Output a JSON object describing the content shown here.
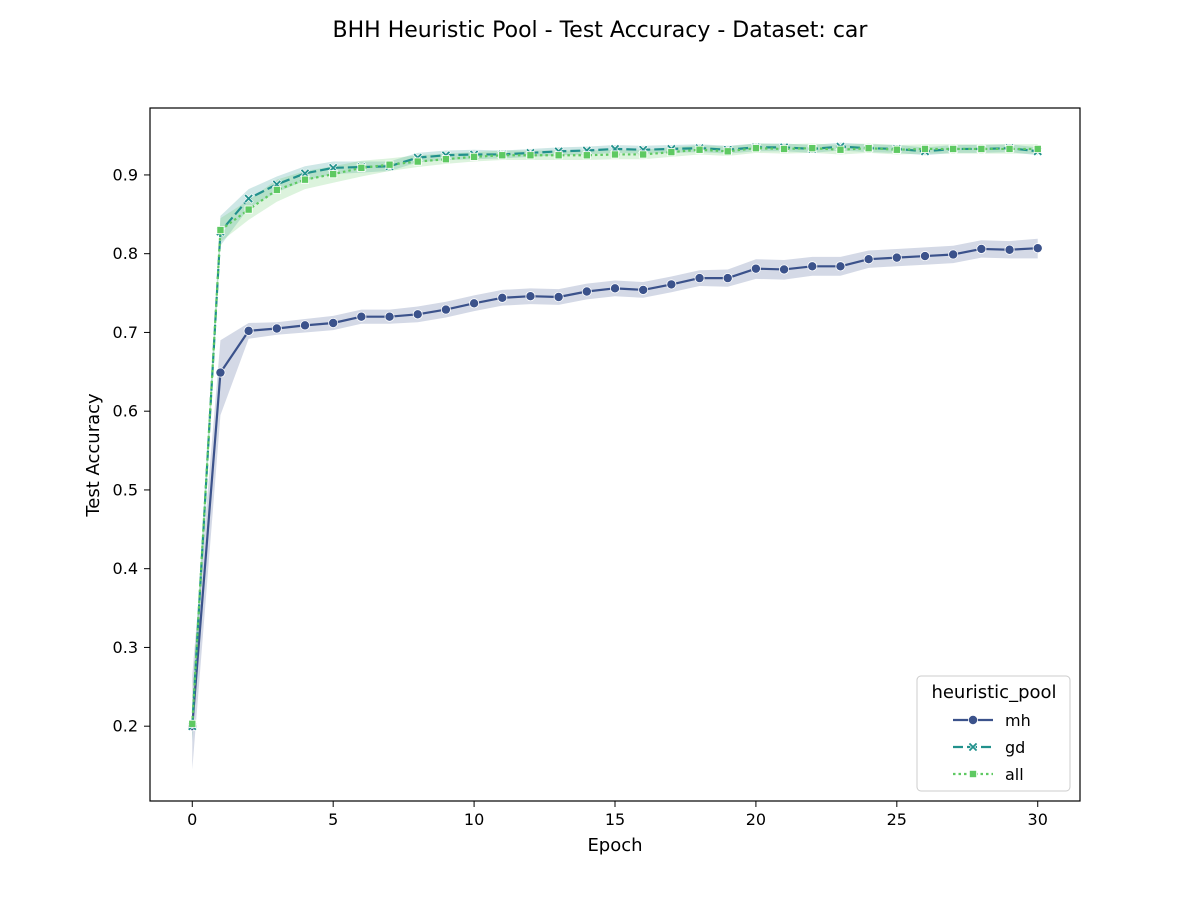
{
  "chart_data": {
    "type": "line",
    "title": "BHH Heuristic Pool - Test Accuracy - Dataset: car",
    "xlabel": "Epoch",
    "ylabel": "Test Accuracy",
    "xlim": [
      -1.5,
      31.5
    ],
    "ylim": [
      0.105,
      0.985
    ],
    "xticks": [
      0,
      5,
      10,
      15,
      20,
      25,
      30
    ],
    "xtick_labels": [
      "0",
      "5",
      "10",
      "15",
      "20",
      "25",
      "30"
    ],
    "yticks": [
      0.2,
      0.3,
      0.4,
      0.5,
      0.6,
      0.7,
      0.8,
      0.9
    ],
    "ytick_labels": [
      "0.2",
      "0.3",
      "0.4",
      "0.5",
      "0.6",
      "0.7",
      "0.8",
      "0.9"
    ],
    "grid": false,
    "legend": {
      "title": "heuristic_pool",
      "placement": "lower-right"
    },
    "x": [
      0,
      1,
      2,
      3,
      4,
      5,
      6,
      7,
      8,
      9,
      10,
      11,
      12,
      13,
      14,
      15,
      16,
      17,
      18,
      19,
      20,
      21,
      22,
      23,
      24,
      25,
      26,
      27,
      28,
      29,
      30
    ],
    "series": [
      {
        "name": "mh",
        "color": "#3b528b",
        "line_style": "solid",
        "marker": "circle",
        "values": [
          0.2,
          0.649,
          0.702,
          0.705,
          0.709,
          0.712,
          0.72,
          0.72,
          0.723,
          0.729,
          0.737,
          0.744,
          0.746,
          0.745,
          0.752,
          0.756,
          0.754,
          0.761,
          0.769,
          0.769,
          0.781,
          0.78,
          0.784,
          0.784,
          0.793,
          0.795,
          0.797,
          0.799,
          0.806,
          0.805,
          0.807
        ],
        "band_lower": [
          0.145,
          0.595,
          0.692,
          0.697,
          0.7,
          0.703,
          0.711,
          0.711,
          0.713,
          0.719,
          0.727,
          0.734,
          0.736,
          0.735,
          0.742,
          0.746,
          0.744,
          0.751,
          0.759,
          0.758,
          0.768,
          0.767,
          0.772,
          0.772,
          0.782,
          0.784,
          0.786,
          0.788,
          0.795,
          0.794,
          0.794
        ],
        "band_upper": [
          0.265,
          0.69,
          0.712,
          0.713,
          0.717,
          0.721,
          0.729,
          0.729,
          0.733,
          0.739,
          0.747,
          0.754,
          0.756,
          0.755,
          0.762,
          0.766,
          0.764,
          0.771,
          0.779,
          0.78,
          0.793,
          0.792,
          0.796,
          0.796,
          0.804,
          0.806,
          0.808,
          0.81,
          0.817,
          0.816,
          0.819
        ]
      },
      {
        "name": "gd",
        "color": "#21918c",
        "line_style": "dashed",
        "marker": "x",
        "values": [
          0.2,
          0.828,
          0.87,
          0.888,
          0.902,
          0.909,
          0.91,
          0.911,
          0.922,
          0.925,
          0.926,
          0.926,
          0.928,
          0.93,
          0.931,
          0.933,
          0.932,
          0.933,
          0.934,
          0.932,
          0.935,
          0.935,
          0.933,
          0.936,
          0.934,
          0.933,
          0.93,
          0.933,
          0.933,
          0.934,
          0.93
        ],
        "band_lower": [
          0.18,
          0.81,
          0.858,
          0.878,
          0.893,
          0.901,
          0.903,
          0.905,
          0.916,
          0.919,
          0.92,
          0.921,
          0.923,
          0.925,
          0.926,
          0.928,
          0.927,
          0.928,
          0.929,
          0.927,
          0.93,
          0.93,
          0.928,
          0.931,
          0.929,
          0.928,
          0.925,
          0.928,
          0.928,
          0.929,
          0.925
        ],
        "band_upper": [
          0.225,
          0.848,
          0.882,
          0.898,
          0.911,
          0.917,
          0.917,
          0.917,
          0.928,
          0.931,
          0.932,
          0.931,
          0.933,
          0.935,
          0.936,
          0.938,
          0.937,
          0.938,
          0.939,
          0.937,
          0.94,
          0.94,
          0.938,
          0.941,
          0.939,
          0.938,
          0.935,
          0.938,
          0.938,
          0.939,
          0.935
        ]
      },
      {
        "name": "all",
        "color": "#5ec962",
        "line_style": "dotted",
        "marker": "square",
        "values": [
          0.203,
          0.83,
          0.856,
          0.881,
          0.894,
          0.901,
          0.909,
          0.913,
          0.917,
          0.92,
          0.923,
          0.925,
          0.925,
          0.925,
          0.925,
          0.926,
          0.926,
          0.929,
          0.932,
          0.93,
          0.934,
          0.933,
          0.934,
          0.932,
          0.934,
          0.932,
          0.933,
          0.933,
          0.933,
          0.933,
          0.933
        ],
        "band_lower": [
          0.185,
          0.815,
          0.843,
          0.866,
          0.882,
          0.89,
          0.898,
          0.905,
          0.91,
          0.914,
          0.917,
          0.919,
          0.919,
          0.919,
          0.919,
          0.92,
          0.92,
          0.923,
          0.926,
          0.924,
          0.928,
          0.927,
          0.928,
          0.926,
          0.928,
          0.926,
          0.927,
          0.927,
          0.927,
          0.927,
          0.927
        ],
        "band_upper": [
          0.22,
          0.845,
          0.868,
          0.894,
          0.905,
          0.911,
          0.918,
          0.921,
          0.925,
          0.927,
          0.929,
          0.931,
          0.931,
          0.931,
          0.931,
          0.932,
          0.932,
          0.935,
          0.938,
          0.936,
          0.94,
          0.939,
          0.94,
          0.938,
          0.94,
          0.938,
          0.939,
          0.939,
          0.939,
          0.939,
          0.939
        ]
      }
    ]
  }
}
